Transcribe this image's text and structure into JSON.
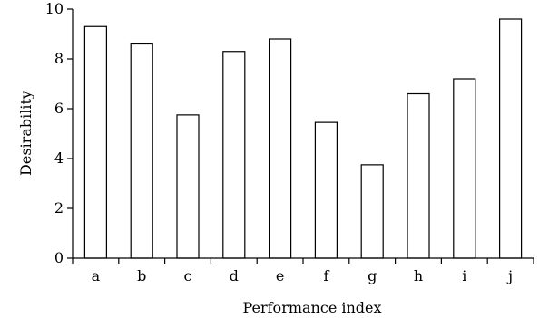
{
  "chart_data": {
    "type": "bar",
    "categories": [
      "a",
      "b",
      "c",
      "d",
      "e",
      "f",
      "g",
      "h",
      "i",
      "j"
    ],
    "values": [
      9.3,
      8.6,
      5.75,
      8.3,
      8.8,
      5.45,
      3.75,
      6.6,
      7.2,
      9.6
    ],
    "title": "",
    "xlabel": "Performance index",
    "ylabel": "Desirability",
    "ylim": [
      0,
      10
    ],
    "yticks": [
      0,
      2,
      4,
      6,
      8,
      10
    ],
    "grid": false,
    "legend": "none",
    "bar_fill": "#ffffff",
    "bar_stroke": "#000000"
  }
}
